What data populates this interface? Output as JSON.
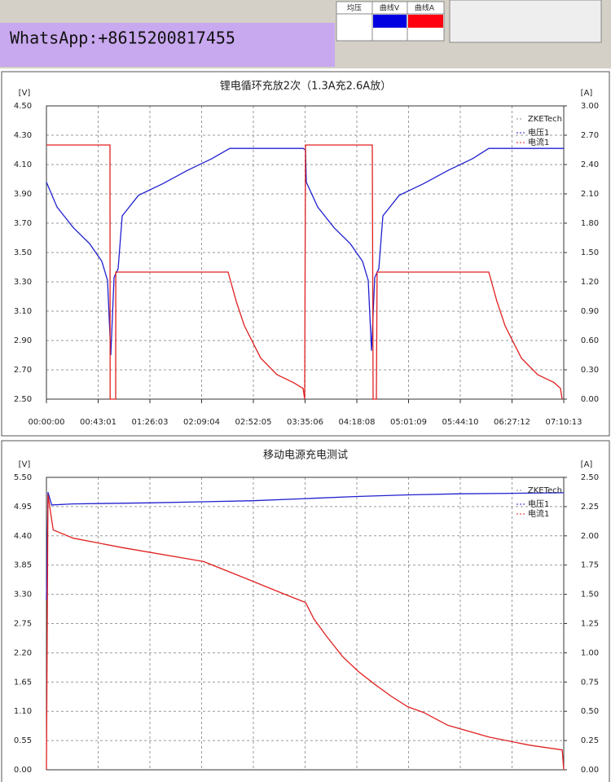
{
  "header": {
    "watermark": "WhatsApp:+8615200817455",
    "columns": [
      "均压",
      "曲线V",
      "曲线A"
    ]
  },
  "chart_data": [
    {
      "type": "line",
      "title": "锂电循环充放2次（1.3A充2.6A放）",
      "y_label": "[V]",
      "y2_label": "[A]",
      "legend_title": "ZKETech",
      "legend": "upper right",
      "grid": true,
      "xlim": [
        0,
        25813
      ],
      "xticks": [
        {
          "value": 0,
          "label": "00:00:00"
        },
        {
          "value": 2581,
          "label": "00:43:01"
        },
        {
          "value": 5163,
          "label": "01:26:03"
        },
        {
          "value": 7744,
          "label": "02:09:04"
        },
        {
          "value": 10325,
          "label": "02:52:05"
        },
        {
          "value": 12906,
          "label": "03:35:06"
        },
        {
          "value": 15488,
          "label": "04:18:08"
        },
        {
          "value": 18069,
          "label": "05:01:09"
        },
        {
          "value": 20650,
          "label": "05:44:10"
        },
        {
          "value": 23232,
          "label": "06:27:12"
        },
        {
          "value": 25813,
          "label": "07:10:13"
        }
      ],
      "ylim": [
        2.5,
        4.5
      ],
      "yticks": [
        {
          "value": 2.5,
          "label": "2.50"
        },
        {
          "value": 2.7,
          "label": "2.70"
        },
        {
          "value": 2.9,
          "label": "2.90"
        },
        {
          "value": 3.1,
          "label": "3.10"
        },
        {
          "value": 3.3,
          "label": "3.30"
        },
        {
          "value": 3.5,
          "label": "3.50"
        },
        {
          "value": 3.7,
          "label": "3.70"
        },
        {
          "value": 3.9,
          "label": "3.90"
        },
        {
          "value": 4.1,
          "label": "4.10"
        },
        {
          "value": 4.3,
          "label": "4.30"
        },
        {
          "value": 4.5,
          "label": "4.50"
        }
      ],
      "y2lim": [
        0,
        3
      ],
      "y2ticks": [
        {
          "value": 0,
          "label": "0.00"
        },
        {
          "value": 0.3,
          "label": "0.30"
        },
        {
          "value": 0.6,
          "label": "0.60"
        },
        {
          "value": 0.9,
          "label": "0.90"
        },
        {
          "value": 1.2,
          "label": "1.20"
        },
        {
          "value": 1.5,
          "label": "1.50"
        },
        {
          "value": 1.8,
          "label": "1.80"
        },
        {
          "value": 2.1,
          "label": "2.10"
        },
        {
          "value": 2.4,
          "label": "2.40"
        },
        {
          "value": 2.7,
          "label": "2.70"
        },
        {
          "value": 3,
          "label": "3.00"
        }
      ],
      "series": [
        {
          "name": "电压1",
          "color": "#2020d0",
          "x": [
            0,
            528,
            1341,
            2154,
            2764,
            3049,
            3211,
            3374,
            3577,
            3780,
            4593,
            5813,
            7032,
            8252,
            9146,
            12805,
            12927,
            12967,
            13536,
            14349,
            15162,
            15772,
            16057,
            16219,
            16382,
            16585,
            16788,
            17601,
            18821,
            20040,
            21260,
            22073,
            25813
          ],
          "values": [
            3.98,
            3.81,
            3.67,
            3.56,
            3.44,
            3.31,
            2.8,
            3.33,
            3.39,
            3.75,
            3.89,
            3.97,
            4.06,
            4.14,
            4.21,
            4.21,
            4.2,
            3.98,
            3.81,
            3.67,
            3.56,
            3.44,
            3.31,
            2.83,
            3.33,
            3.39,
            3.75,
            3.89,
            3.97,
            4.06,
            4.14,
            4.21,
            4.21
          ]
        },
        {
          "name": "电流1",
          "color": "#e02020",
          "axis": "y2",
          "x": [
            0,
            3170,
            3180,
            3455,
            3460,
            9065,
            9471,
            9878,
            10691,
            11504,
            12317,
            12805,
            12886,
            12927,
            16260,
            16300,
            16463,
            16500,
            22073,
            22480,
            22886,
            23700,
            24513,
            25326,
            25651,
            25732
          ],
          "values": [
            2.6,
            2.6,
            0,
            0,
            1.3,
            1.3,
            1.0,
            0.75,
            0.42,
            0.25,
            0.17,
            0.11,
            0,
            2.6,
            2.6,
            0,
            0,
            1.3,
            1.3,
            1.0,
            0.75,
            0.42,
            0.25,
            0.17,
            0.11,
            0
          ]
        }
      ]
    },
    {
      "type": "line",
      "title": "移动电源充电测试",
      "y_label": "[V]",
      "y2_label": "[A]",
      "legend_title": "ZKETech",
      "legend": "upper right",
      "grid": true,
      "xlim": [
        0,
        10
      ],
      "ylim": [
        0,
        5.5
      ],
      "yticks": [
        {
          "value": 0,
          "label": "0.00"
        },
        {
          "value": 0.55,
          "label": "0.55"
        },
        {
          "value": 1.1,
          "label": "1.10"
        },
        {
          "value": 1.65,
          "label": "1.65"
        },
        {
          "value": 2.2,
          "label": "2.20"
        },
        {
          "value": 2.75,
          "label": "2.75"
        },
        {
          "value": 3.3,
          "label": "3.30"
        },
        {
          "value": 3.85,
          "label": "3.85"
        },
        {
          "value": 4.4,
          "label": "4.40"
        },
        {
          "value": 4.95,
          "label": "4.95"
        },
        {
          "value": 5.5,
          "label": "5.50"
        }
      ],
      "y2lim": [
        0,
        2.5
      ],
      "y2ticks": [
        {
          "value": 0,
          "label": "0.00"
        },
        {
          "value": 0.25,
          "label": "0.25"
        },
        {
          "value": 0.5,
          "label": "0.50"
        },
        {
          "value": 0.75,
          "label": "0.75"
        },
        {
          "value": 1,
          "label": "1.00"
        },
        {
          "value": 1.25,
          "label": "1.25"
        },
        {
          "value": 1.5,
          "label": "1.50"
        },
        {
          "value": 1.75,
          "label": "1.75"
        },
        {
          "value": 2,
          "label": "2.00"
        },
        {
          "value": 2.25,
          "label": "2.25"
        },
        {
          "value": 2.5,
          "label": "2.50"
        }
      ],
      "series": [
        {
          "name": "电压1",
          "color": "#2020d0",
          "x": [
            0,
            0.03,
            0.1,
            0.5,
            2,
            4,
            5,
            6,
            7,
            8,
            9,
            10
          ],
          "values": [
            3.2,
            5.22,
            4.98,
            5.0,
            5.02,
            5.06,
            5.1,
            5.14,
            5.17,
            5.19,
            5.2,
            5.21
          ]
        },
        {
          "name": "电流1",
          "color": "#e02020",
          "axis": "y2",
          "x": [
            0,
            0.03,
            0.13,
            0.52,
            1.46,
            3.04,
            3.83,
            4.61,
            5.01,
            5.17,
            5.4,
            5.72,
            6.03,
            6.35,
            6.66,
            6.98,
            7.29,
            7.76,
            8.55,
            9.34,
            9.97,
            10
          ],
          "values": [
            0,
            2.35,
            2.05,
            1.98,
            1.9,
            1.78,
            1.64,
            1.5,
            1.43,
            1.29,
            1.15,
            0.97,
            0.84,
            0.73,
            0.63,
            0.54,
            0.49,
            0.38,
            0.28,
            0.21,
            0.17,
            0
          ]
        }
      ]
    }
  ]
}
